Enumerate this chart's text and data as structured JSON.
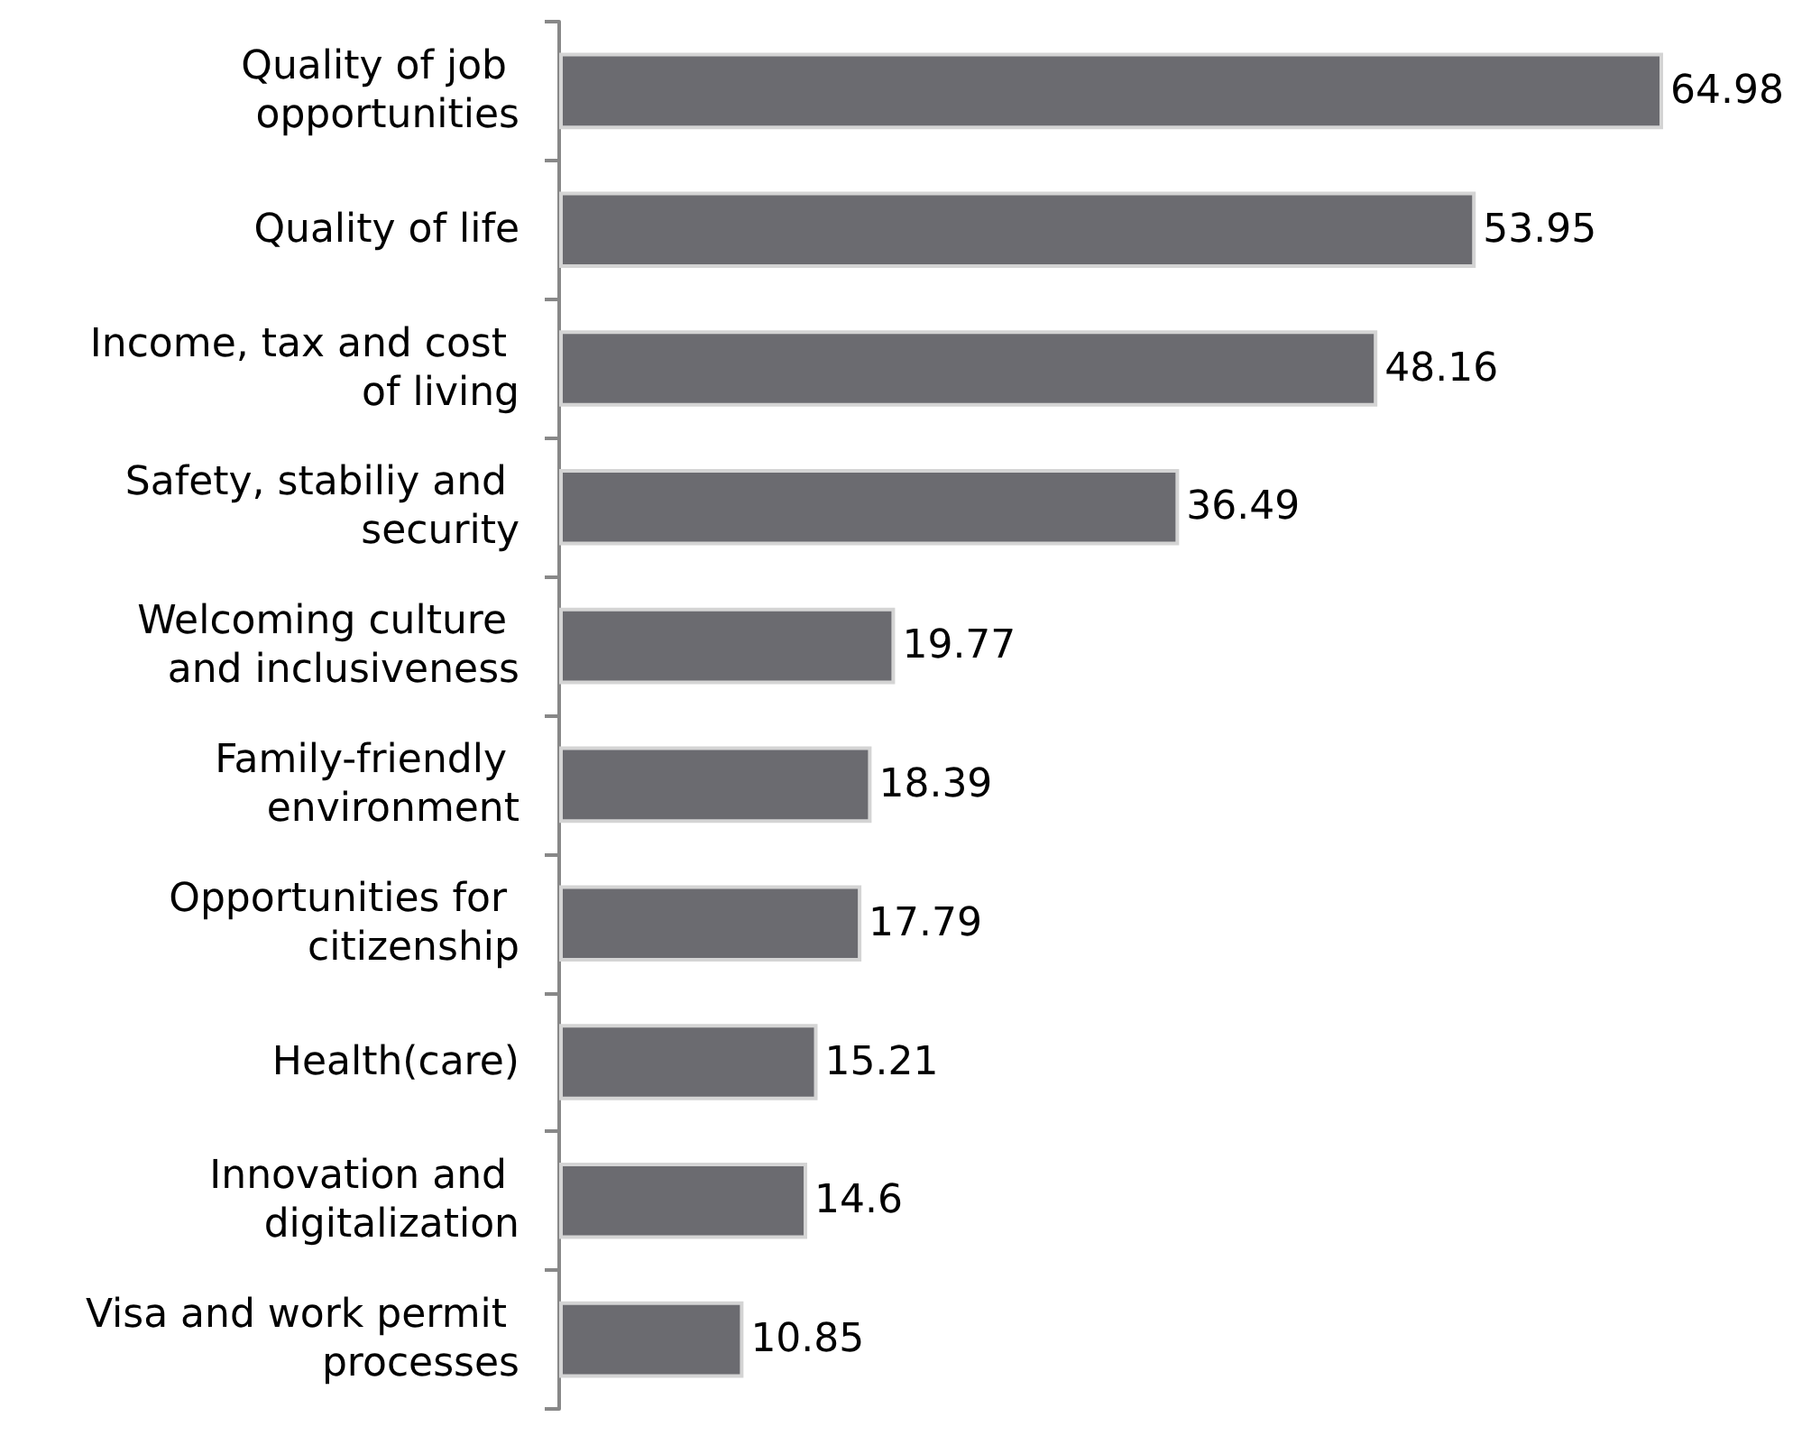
{
  "chart_data": {
    "type": "bar",
    "orientation": "horizontal",
    "categories": [
      "Quality of job opportunities",
      "Quality of life",
      "Income, tax and cost of living",
      "Safety, stabiliy and security",
      "Welcoming culture and inclusiveness",
      "Family-friendly environment",
      "Opportunities for citizenship",
      "Health(care)",
      "Innovation and digitalization",
      "Visa and work permit processes"
    ],
    "values": [
      64.98,
      53.95,
      48.16,
      36.49,
      19.77,
      18.39,
      17.79,
      15.21,
      14.6,
      10.85
    ],
    "color": "#6b6b70",
    "data_labels": true
  }
}
